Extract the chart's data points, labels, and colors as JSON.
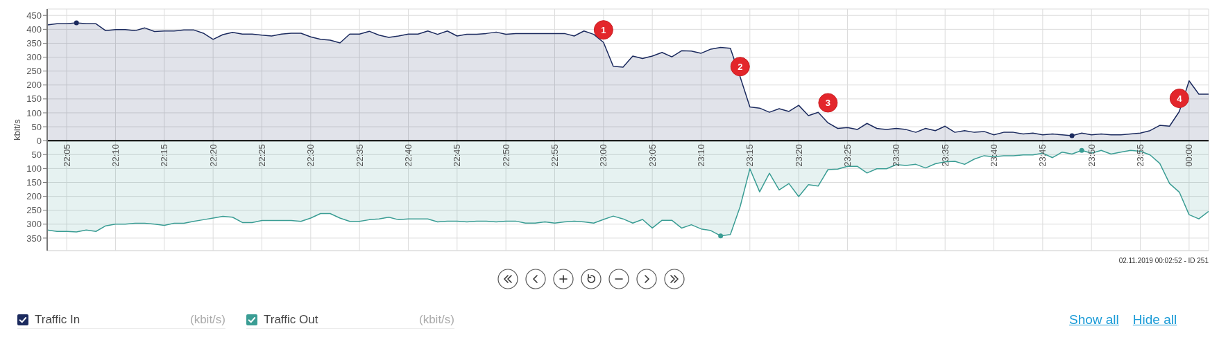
{
  "chart_data": {
    "type": "area",
    "ylabel": "kbit/s",
    "x": [
      "2019-11-01T22:03",
      "2019-11-01T22:04",
      "2019-11-01T22:05",
      "2019-11-01T22:06",
      "2019-11-01T22:07",
      "2019-11-01T22:08",
      "2019-11-01T22:09",
      "2019-11-01T22:10",
      "2019-11-01T22:11",
      "2019-11-01T22:12",
      "2019-11-01T22:13",
      "2019-11-01T22:14",
      "2019-11-01T22:15",
      "2019-11-01T22:16",
      "2019-11-01T22:17",
      "2019-11-01T22:18",
      "2019-11-01T22:19",
      "2019-11-01T22:20",
      "2019-11-01T22:21",
      "2019-11-01T22:22",
      "2019-11-01T22:23",
      "2019-11-01T22:24",
      "2019-11-01T22:25",
      "2019-11-01T22:26",
      "2019-11-01T22:27",
      "2019-11-01T22:28",
      "2019-11-01T22:29",
      "2019-11-01T22:30",
      "2019-11-01T22:31",
      "2019-11-01T22:32",
      "2019-11-01T22:33",
      "2019-11-01T22:34",
      "2019-11-01T22:35",
      "2019-11-01T22:36",
      "2019-11-01T22:37",
      "2019-11-01T22:38",
      "2019-11-01T22:39",
      "2019-11-01T22:40",
      "2019-11-01T22:41",
      "2019-11-01T22:42",
      "2019-11-01T22:43",
      "2019-11-01T22:44",
      "2019-11-01T22:45",
      "2019-11-01T22:46",
      "2019-11-01T22:47",
      "2019-11-01T22:48",
      "2019-11-01T22:49",
      "2019-11-01T22:50",
      "2019-11-01T22:51",
      "2019-11-01T22:52",
      "2019-11-01T22:53",
      "2019-11-01T22:54",
      "2019-11-01T22:55",
      "2019-11-01T22:56",
      "2019-11-01T22:57",
      "2019-11-01T22:58",
      "2019-11-01T22:59",
      "2019-11-01T23:00",
      "2019-11-01T23:01",
      "2019-11-01T23:02",
      "2019-11-01T23:03",
      "2019-11-01T23:04",
      "2019-11-01T23:05",
      "2019-11-01T23:06",
      "2019-11-01T23:07",
      "2019-11-01T23:08",
      "2019-11-01T23:09",
      "2019-11-01T23:10",
      "2019-11-01T23:11",
      "2019-11-01T23:12",
      "2019-11-01T23:13",
      "2019-11-01T23:14",
      "2019-11-01T23:15",
      "2019-11-01T23:16",
      "2019-11-01T23:17",
      "2019-11-01T23:18",
      "2019-11-01T23:19",
      "2019-11-01T23:20",
      "2019-11-01T23:21",
      "2019-11-01T23:22",
      "2019-11-01T23:23",
      "2019-11-01T23:24",
      "2019-11-01T23:25",
      "2019-11-01T23:26",
      "2019-11-01T23:27",
      "2019-11-01T23:28",
      "2019-11-01T23:29",
      "2019-11-01T23:30",
      "2019-11-01T23:31",
      "2019-11-01T23:32",
      "2019-11-01T23:33",
      "2019-11-01T23:34",
      "2019-11-01T23:35",
      "2019-11-01T23:36",
      "2019-11-01T23:37",
      "2019-11-01T23:38",
      "2019-11-01T23:39",
      "2019-11-01T23:40",
      "2019-11-01T23:41",
      "2019-11-01T23:42",
      "2019-11-01T23:43",
      "2019-11-01T23:44",
      "2019-11-01T23:45",
      "2019-11-01T23:46",
      "2019-11-01T23:47",
      "2019-11-01T23:48",
      "2019-11-01T23:49",
      "2019-11-01T23:50",
      "2019-11-01T23:51",
      "2019-11-01T23:52",
      "2019-11-01T23:53",
      "2019-11-01T23:54",
      "2019-11-01T23:55",
      "2019-11-01T23:56",
      "2019-11-01T23:57",
      "2019-11-01T23:58",
      "2019-11-01T23:59",
      "2019-11-02T00:00",
      "2019-11-02T00:01",
      "2019-11-02T00:02"
    ],
    "xlim": [
      "2019-11-01T22:03",
      "2019-11-02T00:02"
    ],
    "xticks": [
      {
        "value": "2019-11-01T22:05",
        "label": "22:05"
      },
      {
        "value": "2019-11-01T22:10",
        "label": "22:10"
      },
      {
        "value": "2019-11-01T22:15",
        "label": "22:15"
      },
      {
        "value": "2019-11-01T22:20",
        "label": "22:20"
      },
      {
        "value": "2019-11-01T22:25",
        "label": "22:25"
      },
      {
        "value": "2019-11-01T22:30",
        "label": "22:30"
      },
      {
        "value": "2019-11-01T22:35",
        "label": "22:35"
      },
      {
        "value": "2019-11-01T22:40",
        "label": "22:40"
      },
      {
        "value": "2019-11-01T22:45",
        "label": "22:45"
      },
      {
        "value": "2019-11-01T22:50",
        "label": "22:50"
      },
      {
        "value": "2019-11-01T22:55",
        "label": "22:55"
      },
      {
        "value": "2019-11-01T23:00",
        "label": "23:00"
      },
      {
        "value": "2019-11-01T23:05",
        "label": "23:05"
      },
      {
        "value": "2019-11-01T23:10",
        "label": "23:10"
      },
      {
        "value": "2019-11-01T23:15",
        "label": "23:15"
      },
      {
        "value": "2019-11-01T23:20",
        "label": "23:20"
      },
      {
        "value": "2019-11-01T23:25",
        "label": "23:25"
      },
      {
        "value": "2019-11-01T23:30",
        "label": "23:30"
      },
      {
        "value": "2019-11-01T23:35",
        "label": "23:35"
      },
      {
        "value": "2019-11-01T23:40",
        "label": "23:40"
      },
      {
        "value": "2019-11-01T23:45",
        "label": "23:45"
      },
      {
        "value": "2019-11-01T23:50",
        "label": "23:50"
      },
      {
        "value": "2019-11-01T23:55",
        "label": "23:55"
      },
      {
        "value": "2019-11-02T00:00",
        "label": "00:00"
      }
    ],
    "ylim": [
      -395,
      473
    ],
    "yticks": [
      {
        "value": -350,
        "label": "350"
      },
      {
        "value": -300,
        "label": "300"
      },
      {
        "value": -250,
        "label": "250"
      },
      {
        "value": -200,
        "label": "200"
      },
      {
        "value": -150,
        "label": "150"
      },
      {
        "value": -100,
        "label": "100"
      },
      {
        "value": -50,
        "label": "50"
      },
      0,
      50,
      100,
      150,
      200,
      250,
      300,
      350,
      400,
      450
    ],
    "grid": true,
    "legend": "bottom left",
    "series": [
      {
        "name": "Traffic In",
        "color": "#1b2a5e",
        "values": [
          416,
          420,
          420,
          423,
          420,
          420,
          395,
          399,
          399,
          395,
          405,
          392,
          394,
          394,
          398,
          398,
          386,
          364,
          381,
          389,
          383,
          383,
          379,
          376,
          383,
          386,
          386,
          373,
          364,
          361,
          351,
          383,
          383,
          393,
          379,
          371,
          376,
          383,
          383,
          394,
          382,
          394,
          376,
          382,
          382,
          385,
          390,
          382,
          385,
          385,
          385,
          385,
          385,
          385,
          376,
          394,
          382,
          353,
          267,
          264,
          304,
          295,
          304,
          317,
          301,
          323,
          322,
          314,
          329,
          335,
          332,
          229,
          121,
          117,
          102,
          115,
          105,
          127,
          90,
          102,
          64,
          44,
          47,
          40,
          62,
          44,
          40,
          44,
          40,
          30,
          44,
          36,
          52,
          30,
          36,
          30,
          33,
          21,
          30,
          30,
          24,
          27,
          21,
          24,
          21,
          18,
          27,
          21,
          24,
          21,
          21,
          24,
          27,
          36,
          55,
          52,
          105,
          215,
          167,
          167
        ]
      },
      {
        "name": "Traffic Out",
        "color": "#3a9d94",
        "values": [
          -321,
          -326,
          -326,
          -328,
          -321,
          -326,
          -306,
          -300,
          -300,
          -297,
          -297,
          -300,
          -304,
          -297,
          -297,
          -290,
          -284,
          -278,
          -272,
          -275,
          -294,
          -294,
          -287,
          -287,
          -287,
          -287,
          -290,
          -278,
          -262,
          -262,
          -278,
          -290,
          -290,
          -284,
          -281,
          -275,
          -284,
          -281,
          -281,
          -281,
          -292,
          -289,
          -289,
          -292,
          -289,
          -289,
          -292,
          -289,
          -289,
          -296,
          -296,
          -292,
          -296,
          -292,
          -289,
          -292,
          -296,
          -283,
          -271,
          -281,
          -296,
          -283,
          -314,
          -286,
          -286,
          -314,
          -302,
          -317,
          -323,
          -342,
          -337,
          -237,
          -101,
          -184,
          -117,
          -177,
          -154,
          -201,
          -158,
          -163,
          -104,
          -102,
          -92,
          -92,
          -116,
          -101,
          -101,
          -86,
          -89,
          -85,
          -98,
          -83,
          -76,
          -74,
          -85,
          -66,
          -54,
          -58,
          -54,
          -54,
          -51,
          -51,
          -45,
          -61,
          -41,
          -48,
          -35,
          -45,
          -35,
          -48,
          -41,
          -35,
          -38,
          -51,
          -82,
          -154,
          -185,
          -266,
          -281,
          -254
        ]
      },
      {
        "type": "scatter",
        "color": "#1b2a5e",
        "x": [
          "2019-11-01T22:06",
          "2019-11-01T23:48"
        ],
        "values": [
          423,
          18
        ]
      },
      {
        "type": "scatter",
        "color": "#3a9d94",
        "x": [
          "2019-11-01T23:12",
          "2019-11-01T23:49"
        ],
        "values": [
          -342,
          -35
        ]
      }
    ],
    "annotations": [
      {
        "text": "1",
        "x": "2019-11-01T23:00",
        "y": 398
      },
      {
        "text": "2",
        "x": "2019-11-01T23:14",
        "y": 266
      },
      {
        "text": "3",
        "x": "2019-11-01T23:23",
        "y": 136
      },
      {
        "text": "4",
        "x": "2019-11-01T23:59",
        "y": 152
      },
      "02.11.2019 00:02:52 - ID 251",
      "(kbit/s)",
      "(kbit/s)",
      "Show all",
      "Hide all"
    ]
  }
}
